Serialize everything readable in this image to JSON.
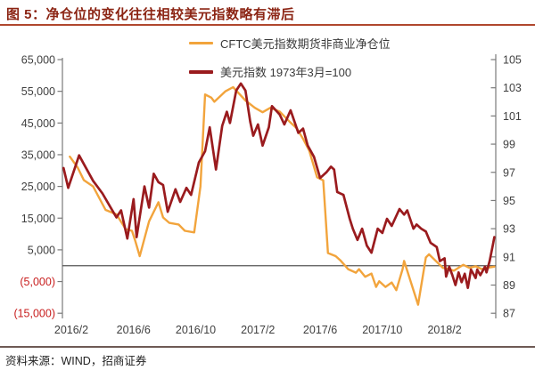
{
  "header": {
    "title": "图 5：净仓位的变化往往相较美元指数略有滞后"
  },
  "legend": [
    {
      "label": "CFTC美元指数期货非商业净仓位",
      "color": "#F2A43C"
    },
    {
      "label": "美元指数 1973年3月=100",
      "color": "#9A1B1E"
    }
  ],
  "footer": {
    "source": "资料来源：WIND，招商证券"
  },
  "colors": {
    "title_text": "#8B2413",
    "rule_top": "#B0472E",
    "rule_bottom": "#6E5A55",
    "axis_text": "#3F3F3F",
    "negative_tick_text": "#C81E1E",
    "axis_line": "#7A7A7A",
    "zero_line": "#555555",
    "series_cftc": "#F2A43C",
    "series_usd": "#9A1B1E"
  },
  "chart_data": {
    "type": "line",
    "title": "图 5：净仓位的变化往往相较美元指数略有滞后",
    "grid": false,
    "legend_position": "top-center",
    "x_axis": {
      "unit": "months, t=1 equals 2016/2",
      "range_t": [
        0.5,
        28.3
      ],
      "ticks": [
        {
          "t": 1,
          "label": "2016/2"
        },
        {
          "t": 5,
          "label": "2016/6"
        },
        {
          "t": 9,
          "label": "2016/10"
        },
        {
          "t": 13,
          "label": "2017/2"
        },
        {
          "t": 17,
          "label": "2017/6"
        },
        {
          "t": 21,
          "label": "2017/10"
        },
        {
          "t": 25,
          "label": "2018/2"
        }
      ]
    },
    "left_axis": {
      "series": "CFTC美元指数期货非商业净仓位",
      "range": [
        -15000,
        65000
      ],
      "ticks": [
        {
          "value": 65000,
          "label": "65,000"
        },
        {
          "value": 55000,
          "label": "55,000"
        },
        {
          "value": 45000,
          "label": "45,000"
        },
        {
          "value": 35000,
          "label": "35,000"
        },
        {
          "value": 25000,
          "label": "25,000"
        },
        {
          "value": 15000,
          "label": "15,000"
        },
        {
          "value": 5000,
          "label": "5,000"
        },
        {
          "value": -5000,
          "label": "(5,000)"
        },
        {
          "value": -15000,
          "label": "(15,000)"
        }
      ]
    },
    "right_axis": {
      "series": "美元指数 1973年3月=100",
      "range": [
        87,
        105
      ],
      "ticks": [
        105,
        103,
        101,
        99,
        97,
        95,
        93,
        91,
        89,
        87
      ]
    },
    "zero_line": true,
    "series": [
      {
        "name": "CFTC美元指数期货非商业净仓位",
        "axis": "left",
        "color": "#F2A43C",
        "points": [
          [
            0.9,
            34400
          ],
          [
            1.4,
            31000
          ],
          [
            1.8,
            27000
          ],
          [
            2.4,
            25000
          ],
          [
            3.2,
            17600
          ],
          [
            3.9,
            16200
          ],
          [
            4.5,
            11500
          ],
          [
            4.9,
            11000
          ],
          [
            5.1,
            8000
          ],
          [
            5.4,
            3000
          ],
          [
            6.0,
            14000
          ],
          [
            6.6,
            20000
          ],
          [
            6.9,
            15200
          ],
          [
            7.3,
            13500
          ],
          [
            7.9,
            13000
          ],
          [
            8.3,
            11000
          ],
          [
            8.9,
            10500
          ],
          [
            9.3,
            25000
          ],
          [
            9.6,
            54000
          ],
          [
            10.0,
            53000
          ],
          [
            10.2,
            51700
          ],
          [
            10.9,
            55000
          ],
          [
            11.4,
            56300
          ],
          [
            12.2,
            52100
          ],
          [
            12.8,
            49800
          ],
          [
            13.3,
            48400
          ],
          [
            13.8,
            49800
          ],
          [
            14.4,
            48600
          ],
          [
            15.0,
            45600
          ],
          [
            15.5,
            43300
          ],
          [
            15.9,
            40000
          ],
          [
            16.3,
            36300
          ],
          [
            16.8,
            27900
          ],
          [
            17.2,
            26900
          ],
          [
            17.5,
            4000
          ],
          [
            18.0,
            3000
          ],
          [
            18.3,
            1700
          ],
          [
            18.8,
            -1100
          ],
          [
            19.3,
            -2200
          ],
          [
            19.5,
            -1100
          ],
          [
            19.9,
            -3500
          ],
          [
            20.3,
            -2500
          ],
          [
            20.6,
            -6700
          ],
          [
            20.8,
            -4900
          ],
          [
            21.2,
            -6700
          ],
          [
            21.6,
            -5300
          ],
          [
            21.9,
            -7700
          ],
          [
            22.3,
            -1100
          ],
          [
            22.4,
            1500
          ],
          [
            23.3,
            -12300
          ],
          [
            23.8,
            2600
          ],
          [
            24.0,
            3600
          ],
          [
            24.6,
            700
          ],
          [
            24.9,
            -700
          ],
          [
            25.3,
            -1100
          ],
          [
            25.6,
            -1600
          ],
          [
            26.2,
            300
          ],
          [
            26.6,
            -700
          ],
          [
            27.0,
            -200
          ],
          [
            27.4,
            -1100
          ],
          [
            27.7,
            -700
          ],
          [
            28.2,
            -300
          ]
        ]
      },
      {
        "name": "美元指数 1973年3月=100",
        "axis": "right",
        "color": "#9A1B1E",
        "points": [
          [
            0.5,
            97.3
          ],
          [
            0.8,
            95.9
          ],
          [
            1.5,
            98.2
          ],
          [
            2.4,
            96.4
          ],
          [
            3.0,
            95.5
          ],
          [
            3.9,
            93.8
          ],
          [
            4.2,
            94.3
          ],
          [
            4.6,
            92.3
          ],
          [
            5.0,
            95.1
          ],
          [
            5.2,
            92.4
          ],
          [
            5.7,
            96.0
          ],
          [
            6.0,
            94.5
          ],
          [
            6.3,
            96.9
          ],
          [
            6.6,
            96.3
          ],
          [
            6.9,
            96.1
          ],
          [
            7.2,
            94.2
          ],
          [
            7.7,
            95.8
          ],
          [
            8.0,
            94.9
          ],
          [
            8.4,
            95.9
          ],
          [
            8.7,
            95.4
          ],
          [
            9.2,
            97.7
          ],
          [
            9.6,
            98.5
          ],
          [
            9.9,
            100.2
          ],
          [
            10.3,
            97.2
          ],
          [
            10.7,
            100.3
          ],
          [
            11.0,
            101.3
          ],
          [
            11.2,
            100.5
          ],
          [
            11.6,
            102.8
          ],
          [
            11.9,
            103.3
          ],
          [
            12.2,
            102.8
          ],
          [
            12.5,
            100.6
          ],
          [
            12.7,
            99.6
          ],
          [
            13.0,
            100.4
          ],
          [
            13.3,
            98.9
          ],
          [
            13.7,
            100.2
          ],
          [
            13.9,
            101.7
          ],
          [
            14.4,
            101.1
          ],
          [
            14.7,
            100.4
          ],
          [
            15.1,
            101.4
          ],
          [
            15.6,
            99.8
          ],
          [
            15.9,
            100.1
          ],
          [
            16.2,
            98.9
          ],
          [
            16.6,
            98.1
          ],
          [
            17.0,
            96.6
          ],
          [
            17.4,
            97.0
          ],
          [
            17.7,
            97.4
          ],
          [
            17.9,
            97.2
          ],
          [
            18.1,
            95.6
          ],
          [
            18.5,
            95.4
          ],
          [
            18.9,
            93.7
          ],
          [
            19.1,
            93.0
          ],
          [
            19.4,
            92.2
          ],
          [
            19.7,
            93.0
          ],
          [
            20.0,
            91.8
          ],
          [
            20.3,
            91.3
          ],
          [
            20.7,
            93.0
          ],
          [
            21.0,
            92.7
          ],
          [
            21.3,
            93.7
          ],
          [
            21.6,
            93.2
          ],
          [
            22.1,
            94.4
          ],
          [
            22.4,
            94.0
          ],
          [
            22.6,
            94.3
          ],
          [
            23.0,
            93.0
          ],
          [
            23.2,
            93.3
          ],
          [
            23.5,
            93.0
          ],
          [
            23.8,
            92.8
          ],
          [
            24.1,
            92.0
          ],
          [
            24.5,
            91.7
          ],
          [
            24.7,
            90.7
          ],
          [
            25.0,
            90.9
          ],
          [
            25.1,
            89.6
          ],
          [
            25.3,
            90.3
          ],
          [
            25.5,
            89.7
          ],
          [
            25.7,
            89.0
          ],
          [
            25.9,
            89.9
          ],
          [
            26.1,
            89.2
          ],
          [
            26.3,
            89.8
          ],
          [
            26.5,
            88.8
          ],
          [
            26.7,
            90.1
          ],
          [
            27.0,
            89.5
          ],
          [
            27.1,
            90.1
          ],
          [
            27.3,
            89.7
          ],
          [
            27.6,
            90.3
          ],
          [
            27.7,
            89.9
          ],
          [
            27.9,
            90.7
          ],
          [
            28.1,
            91.8
          ],
          [
            28.2,
            92.4
          ]
        ]
      }
    ]
  }
}
